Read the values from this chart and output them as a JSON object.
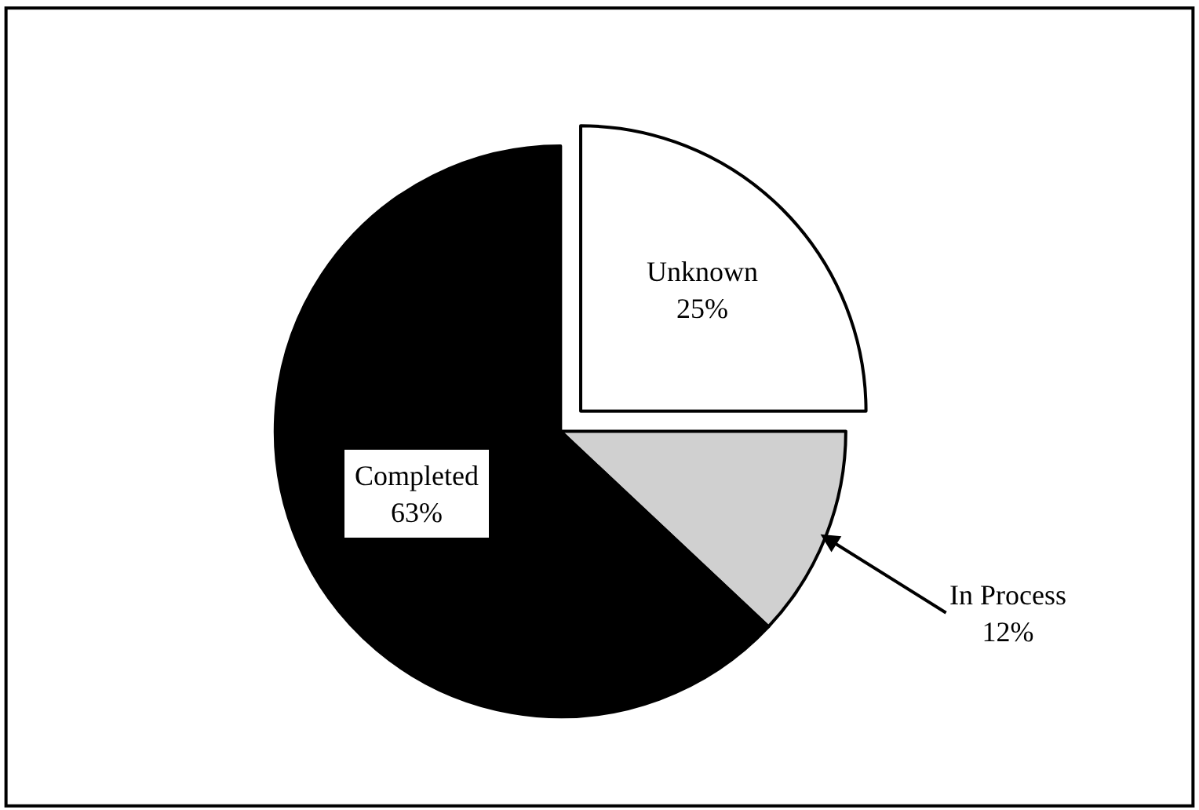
{
  "chart_data": {
    "type": "pie",
    "categories": [
      "Unknown",
      "In Process",
      "Completed"
    ],
    "values": [
      25,
      12,
      63
    ],
    "colors": [
      "#ffffff",
      "#d0d0d0",
      "#000000"
    ],
    "legend": false,
    "value_labels": [
      "25%",
      "12%",
      "63%"
    ]
  }
}
